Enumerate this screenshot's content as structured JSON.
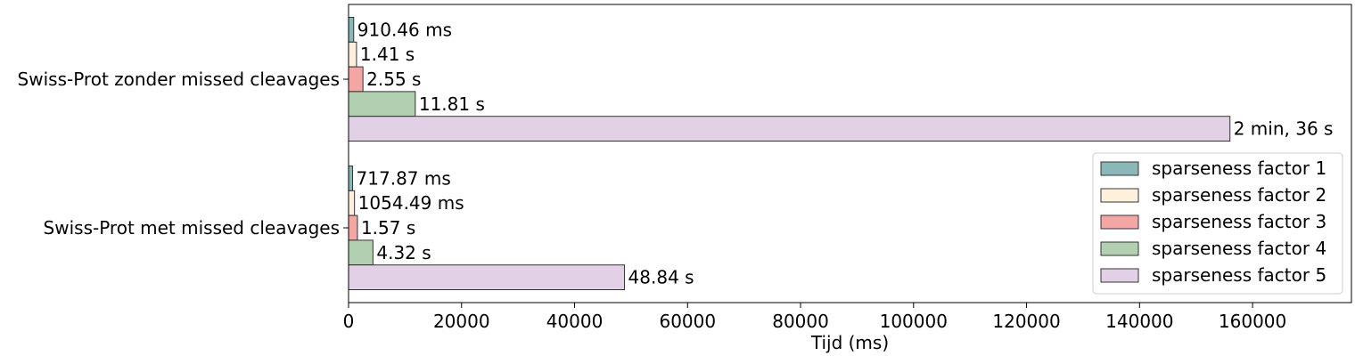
{
  "chart_data": {
    "type": "bar",
    "orientation": "horizontal",
    "title": "",
    "xlabel": "Tijd (ms)",
    "ylabel": "",
    "xlim": [
      0,
      177500
    ],
    "xticks": [
      0,
      20000,
      40000,
      60000,
      80000,
      100000,
      120000,
      140000,
      160000
    ],
    "grid": false,
    "legend_position": "bottom-right",
    "categories": [
      "Swiss-Prot zonder missed cleavages",
      "Swiss-Prot met missed cleavages"
    ],
    "series": [
      {
        "name": "sparseness factor 1",
        "color": "#8ab8b8",
        "values": [
          910.46,
          717.87
        ],
        "labels": [
          "910.46 ms",
          "717.87 ms"
        ]
      },
      {
        "name": "sparseness factor 2",
        "color": "#fdf0dc",
        "values": [
          1410,
          1054.49
        ],
        "labels": [
          "1.41 s",
          "1054.49 ms"
        ]
      },
      {
        "name": "sparseness factor 3",
        "color": "#f3a6a3",
        "values": [
          2550,
          1570
        ],
        "labels": [
          "2.55 s",
          "1.57 s"
        ]
      },
      {
        "name": "sparseness factor 4",
        "color": "#b2d0b1",
        "values": [
          11810,
          4320
        ],
        "labels": [
          "11.81 s",
          "4.32 s"
        ]
      },
      {
        "name": "sparseness factor 5",
        "color": "#e2d1e6",
        "values": [
          156000,
          48840
        ],
        "labels": [
          "2 min, 36 s",
          "48.84 s"
        ]
      }
    ]
  }
}
